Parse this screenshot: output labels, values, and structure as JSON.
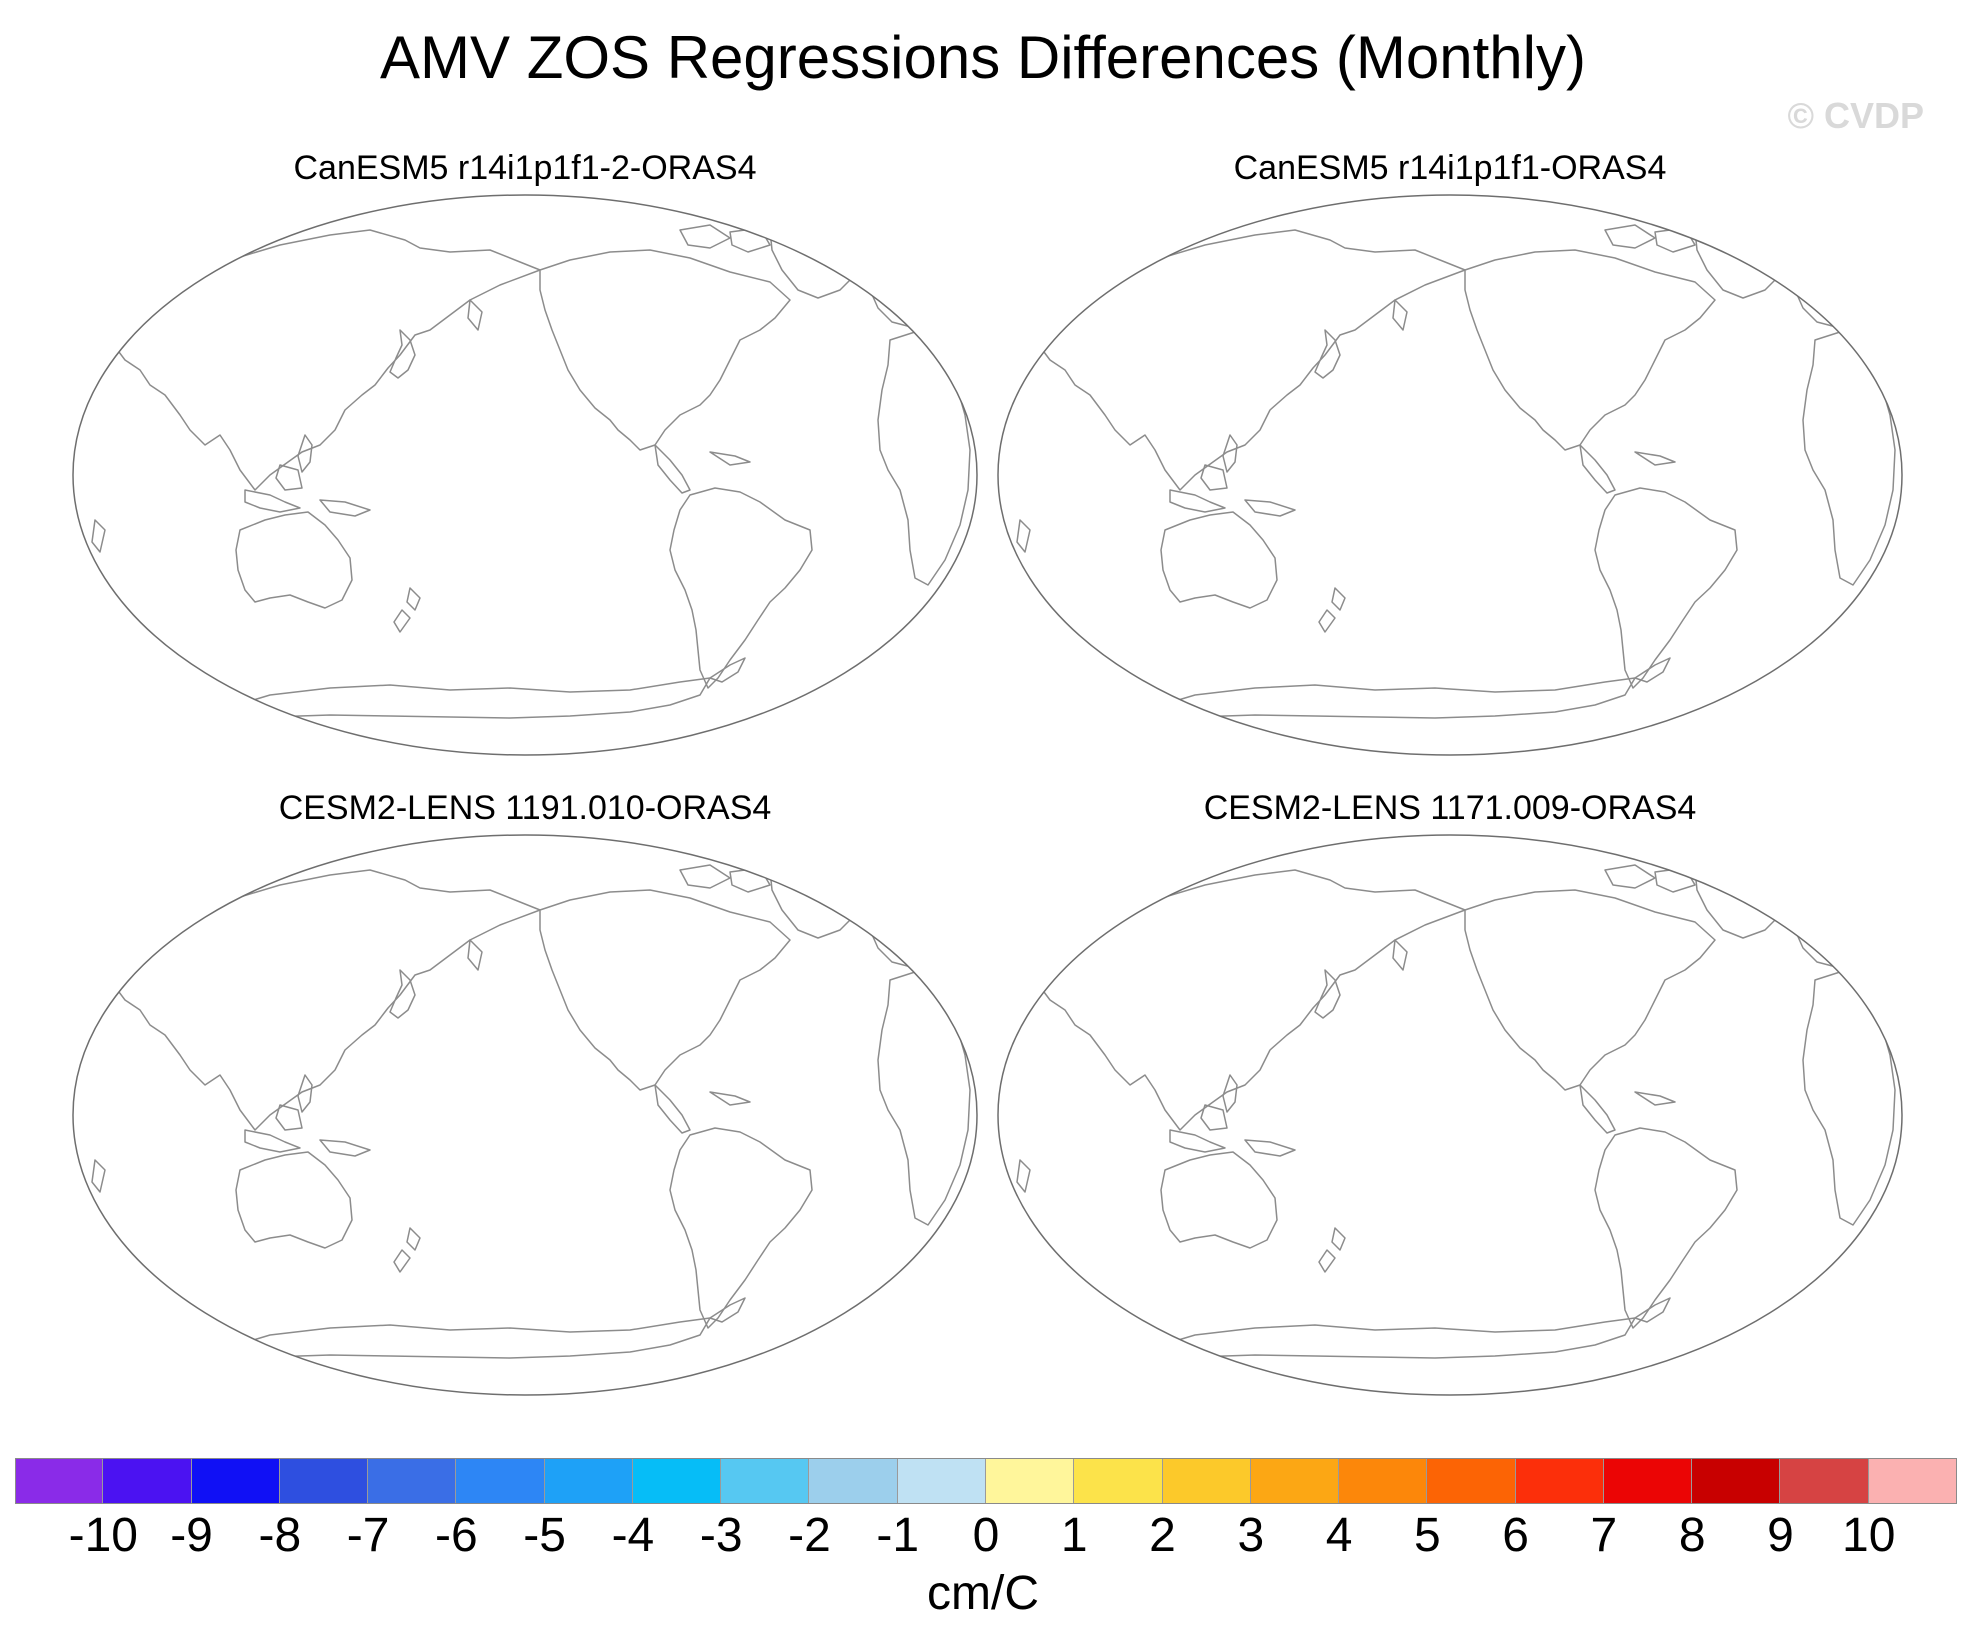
{
  "title": "AMV ZOS Regressions Differences (Monthly)",
  "credit": "© CVDP",
  "panels": [
    {
      "title": "CanESM5 r14i1p1f1-2-ORAS4"
    },
    {
      "title": "CanESM5 r14i1p1f1-ORAS4"
    },
    {
      "title": "CESM2-LENS 1191.010-ORAS4"
    },
    {
      "title": "CESM2-LENS 1171.009-ORAS4"
    }
  ],
  "colorbar": {
    "units": "cm/C",
    "labels": [
      "-10",
      "-9",
      "-8",
      "-7",
      "-6",
      "-5",
      "-4",
      "-3",
      "-2",
      "-1",
      "0",
      "1",
      "2",
      "3",
      "4",
      "5",
      "6",
      "7",
      "8",
      "9",
      "10"
    ],
    "colors": [
      "#8a2be8",
      "#4b12f2",
      "#1010f5",
      "#2e4fe0",
      "#3a6ee6",
      "#2d86f5",
      "#1ea1f7",
      "#06bdf7",
      "#56c8f2",
      "#9ccfec",
      "#bfe1f3",
      "#fff69b",
      "#fce34a",
      "#fcc92a",
      "#fca714",
      "#fc870a",
      "#fc6405",
      "#fc2f0a",
      "#eb0505",
      "#c80000",
      "#d64343",
      "#fbb1b1"
    ]
  }
}
